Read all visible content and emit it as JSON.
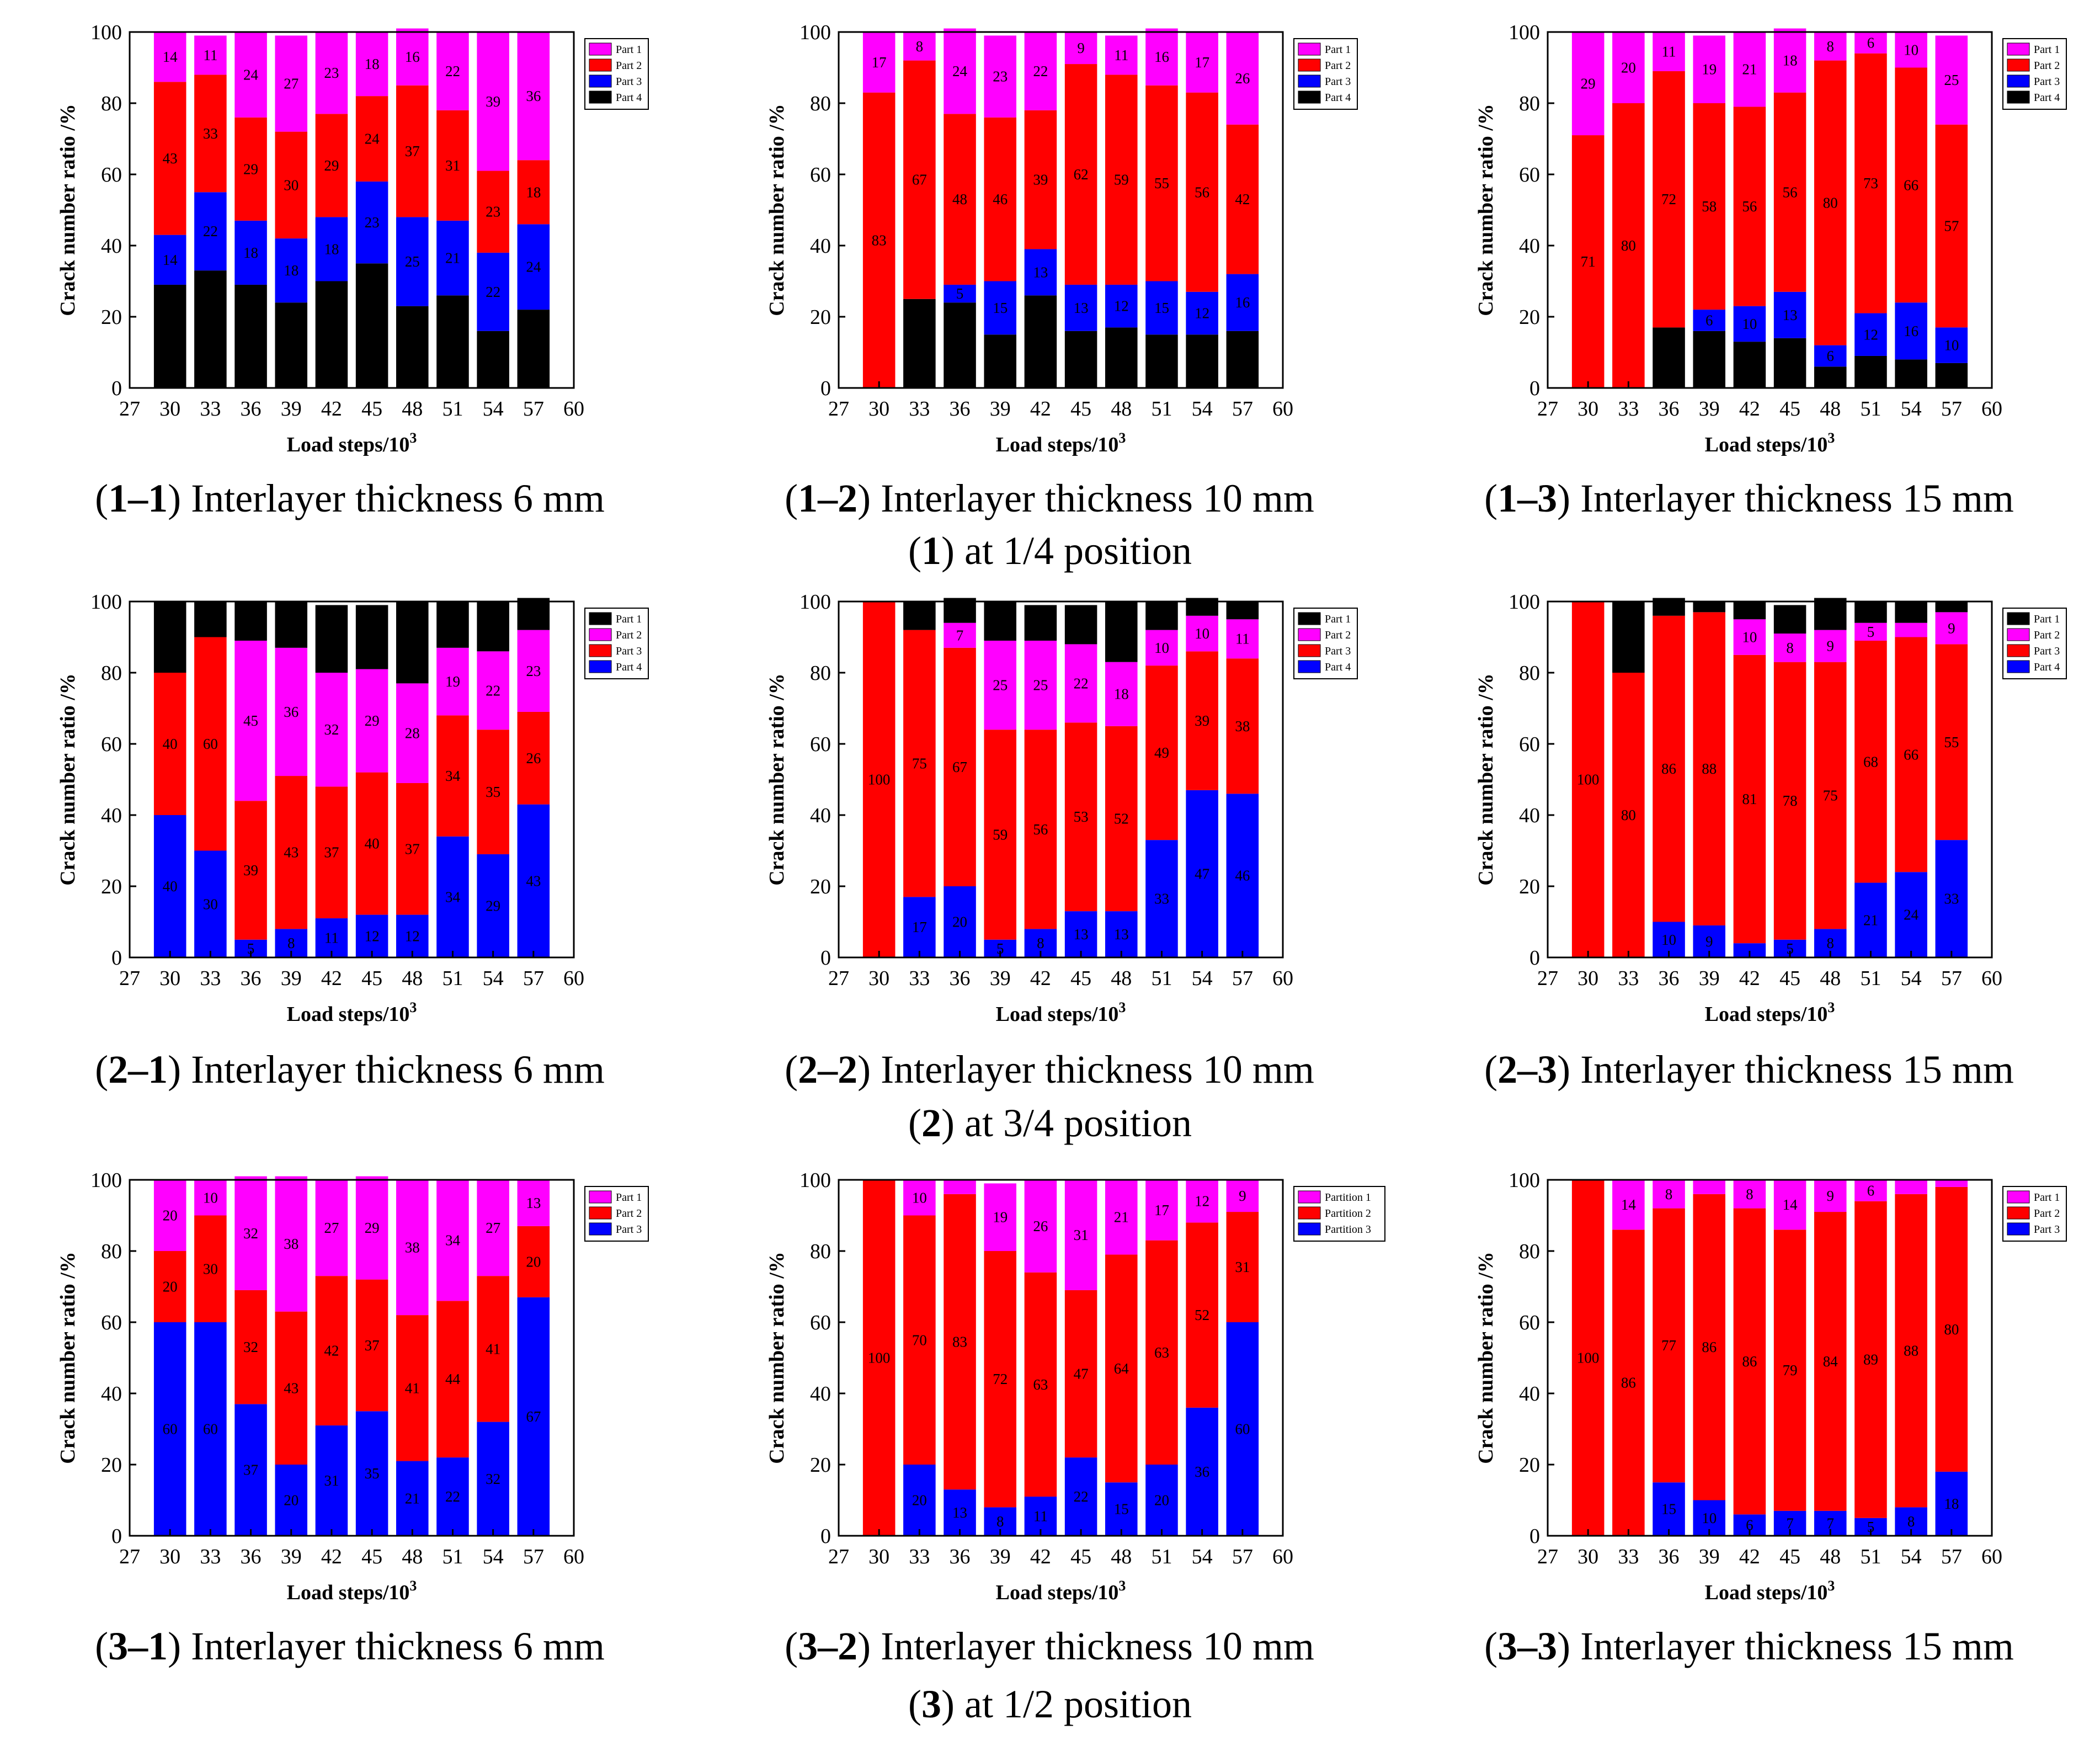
{
  "figure": {
    "colors": {
      "Part 1": "#ff00ff",
      "Part 2": "#ff0000",
      "Part 3": "#0000ff",
      "Part 4": "#000000"
    },
    "shared_axes": {
      "xlabel_base": "Load steps/10",
      "xlabel_sup": "3",
      "ylabel": "Crack number ratio /%",
      "xticks": [
        27,
        30,
        33,
        36,
        39,
        42,
        45,
        48,
        51,
        54,
        57,
        60
      ],
      "yticks": [
        0,
        20,
        40,
        60,
        80,
        100
      ]
    },
    "groups": [
      {
        "id": "1",
        "label_num": "1",
        "label_text": " at 1/4 position"
      },
      {
        "id": "2",
        "label_num": "2",
        "label_text": " at 3/4 position"
      },
      {
        "id": "3",
        "label_num": "3",
        "label_text": " at 1/2 position"
      }
    ]
  },
  "chart_data": [
    {
      "id": "1-1",
      "type": "bar",
      "stacked": true,
      "caption_num": "1–1",
      "caption_text": " Interlayer thickness 6 mm",
      "xlabel": "Load steps/10³",
      "ylabel": "Crack number ratio /%",
      "xlim": [
        27,
        60
      ],
      "ylim": [
        0,
        100
      ],
      "x": [
        30,
        33,
        36,
        39,
        42,
        45,
        48,
        51,
        54,
        57
      ],
      "legend": [
        "Part 1",
        "Part 2",
        "Part 3",
        "Part 4"
      ],
      "series": [
        {
          "name": "Part 4",
          "color": "#000000",
          "label_color": "#ffffff",
          "values": [
            29,
            33,
            29,
            24,
            30,
            35,
            23,
            26,
            16,
            22
          ]
        },
        {
          "name": "Part 3",
          "color": "#0000ff",
          "label_color": "#ffffff",
          "values": [
            14,
            22,
            18,
            18,
            18,
            23,
            25,
            21,
            22,
            24
          ]
        },
        {
          "name": "Part 2",
          "color": "#ff0000",
          "label_color": "#ffffff",
          "values": [
            43,
            33,
            29,
            30,
            29,
            24,
            37,
            31,
            23,
            18
          ]
        },
        {
          "name": "Part 1",
          "color": "#ff00ff",
          "label_color": "#ffffff",
          "values": [
            14,
            11,
            24,
            27,
            23,
            18,
            16,
            22,
            39,
            36
          ]
        }
      ]
    },
    {
      "id": "1-2",
      "type": "bar",
      "stacked": true,
      "caption_num": "1–2",
      "caption_text": " Interlayer thickness 10 mm",
      "xlabel": "Load steps/10³",
      "ylabel": "Crack number ratio /%",
      "xlim": [
        27,
        60
      ],
      "ylim": [
        0,
        100
      ],
      "x": [
        30,
        33,
        36,
        39,
        42,
        45,
        48,
        51,
        54,
        57
      ],
      "legend": [
        "Part 1",
        "Part 2",
        "Part 3",
        "Part 4"
      ],
      "series": [
        {
          "name": "Part 4",
          "color": "#000000",
          "label_color": "#ffffff",
          "values": [
            0,
            25,
            24,
            15,
            26,
            16,
            17,
            15,
            15,
            16
          ]
        },
        {
          "name": "Part 3",
          "color": "#0000ff",
          "label_color": "#ffffff",
          "values": [
            0,
            0,
            5,
            15,
            13,
            13,
            12,
            15,
            12,
            16
          ]
        },
        {
          "name": "Part 2",
          "color": "#ff0000",
          "label_color": "#ffffff",
          "values": [
            83,
            67,
            48,
            46,
            39,
            62,
            59,
            55,
            56,
            42
          ]
        },
        {
          "name": "Part 1",
          "color": "#ff00ff",
          "label_color": "#ffffff",
          "values": [
            17,
            8,
            24,
            23,
            22,
            9,
            11,
            16,
            17,
            26
          ]
        }
      ]
    },
    {
      "id": "1-3",
      "type": "bar",
      "stacked": true,
      "caption_num": "1–3",
      "caption_text": " Interlayer thickness 15 mm",
      "xlabel": "Load steps/10³",
      "ylabel": "Crack number ratio /%",
      "xlim": [
        27,
        60
      ],
      "ylim": [
        0,
        100
      ],
      "x": [
        30,
        33,
        36,
        39,
        42,
        45,
        48,
        51,
        54,
        57
      ],
      "legend": [
        "Part 1",
        "Part 2",
        "Part 3",
        "Part 4"
      ],
      "series": [
        {
          "name": "Part 4",
          "color": "#000000",
          "label_color": "#ffffff",
          "values": [
            0,
            0,
            17,
            16,
            13,
            14,
            6,
            9,
            8,
            7
          ]
        },
        {
          "name": "Part 3",
          "color": "#0000ff",
          "label_color": "#ffffff",
          "values": [
            0,
            0,
            0,
            6,
            10,
            13,
            6,
            12,
            16,
            10
          ]
        },
        {
          "name": "Part 2",
          "color": "#ff0000",
          "label_color": "#ffffff",
          "values": [
            71,
            80,
            72,
            58,
            56,
            56,
            80,
            73,
            66,
            57
          ]
        },
        {
          "name": "Part 1",
          "color": "#ff00ff",
          "label_color": "#ffffff",
          "values": [
            29,
            20,
            11,
            19,
            21,
            18,
            8,
            6,
            10,
            25
          ]
        }
      ]
    },
    {
      "id": "2-1",
      "type": "bar",
      "stacked": true,
      "caption_num": "2–1",
      "caption_text": " Interlayer thickness 6 mm",
      "xlabel": "Load steps/10³",
      "ylabel": "Crack number ratio /%",
      "xlim": [
        27,
        60
      ],
      "ylim": [
        0,
        100
      ],
      "x": [
        30,
        33,
        36,
        39,
        42,
        45,
        48,
        51,
        54,
        57
      ],
      "legend": [
        "Part 1",
        "Part 2",
        "Part 3",
        "Part 4"
      ],
      "series": [
        {
          "name": "Part 4",
          "color": "#0000ff",
          "label_color": "#ffffff",
          "values": [
            40,
            30,
            5,
            8,
            11,
            12,
            12,
            34,
            29,
            43
          ]
        },
        {
          "name": "Part 3",
          "color": "#ff0000",
          "label_color": "#ffffff",
          "values": [
            40,
            60,
            39,
            43,
            37,
            40,
            37,
            34,
            35,
            26
          ]
        },
        {
          "name": "Part 2",
          "color": "#ff00ff",
          "label_color": "#ffffff",
          "values": [
            0,
            0,
            45,
            36,
            32,
            29,
            28,
            19,
            22,
            23
          ]
        },
        {
          "name": "Part 1",
          "color": "#000000",
          "label_color": "#ffffff",
          "values": [
            20,
            10,
            11,
            13,
            19,
            18,
            23,
            13,
            14,
            9
          ]
        }
      ]
    },
    {
      "id": "2-2",
      "type": "bar",
      "stacked": true,
      "caption_num": "2–2",
      "caption_text": " Interlayer thickness 10 mm",
      "xlabel": "Load steps/10³",
      "ylabel": "Crack number ratio /%",
      "xlim": [
        27,
        60
      ],
      "ylim": [
        0,
        100
      ],
      "x": [
        30,
        33,
        36,
        39,
        42,
        45,
        48,
        51,
        54,
        57
      ],
      "legend": [
        "Part 1",
        "Part 2",
        "Part 3",
        "Part 4"
      ],
      "series": [
        {
          "name": "Part 4",
          "color": "#0000ff",
          "label_color": "#ffffff",
          "values": [
            0,
            17,
            20,
            5,
            8,
            13,
            13,
            33,
            47,
            46
          ]
        },
        {
          "name": "Part 3",
          "color": "#ff0000",
          "label_color": "#ffffff",
          "values": [
            100,
            75,
            67,
            59,
            56,
            53,
            52,
            49,
            39,
            38
          ]
        },
        {
          "name": "Part 2",
          "color": "#ff00ff",
          "label_color": "#ffffff",
          "values": [
            0,
            0,
            7,
            25,
            25,
            22,
            18,
            10,
            10,
            11
          ]
        },
        {
          "name": "Part 1",
          "color": "#000000",
          "label_color": "#ffffff",
          "values": [
            0,
            8,
            7,
            11,
            10,
            11,
            17,
            8,
            5,
            5
          ]
        }
      ]
    },
    {
      "id": "2-3",
      "type": "bar",
      "stacked": true,
      "caption_num": "2–3",
      "caption_text": " Interlayer thickness 15 mm",
      "xlabel": "Load steps/10³",
      "ylabel": "Crack number ratio /%",
      "xlim": [
        27,
        60
      ],
      "ylim": [
        0,
        100
      ],
      "x": [
        30,
        33,
        36,
        39,
        42,
        45,
        48,
        51,
        54,
        57
      ],
      "legend": [
        "Part 1",
        "Part 2",
        "Part 3",
        "Part 4"
      ],
      "series": [
        {
          "name": "Part 4",
          "color": "#0000ff",
          "label_color": "#ffffff",
          "values": [
            0,
            0,
            10,
            9,
            4,
            5,
            8,
            21,
            24,
            33
          ]
        },
        {
          "name": "Part 3",
          "color": "#ff0000",
          "label_color": "#ffffff",
          "values": [
            100,
            80,
            86,
            88,
            81,
            78,
            75,
            68,
            66,
            55
          ]
        },
        {
          "name": "Part 2",
          "color": "#ff00ff",
          "label_color": "#ffffff",
          "values": [
            0,
            0,
            0,
            0,
            10,
            8,
            9,
            5,
            4,
            9
          ]
        },
        {
          "name": "Part 1",
          "color": "#000000",
          "label_color": "#ffffff",
          "values": [
            0,
            20,
            5,
            3,
            5,
            8,
            9,
            6,
            6,
            3
          ]
        }
      ]
    },
    {
      "id": "3-1",
      "type": "bar",
      "stacked": true,
      "caption_num": "3–1",
      "caption_text": " Interlayer thickness 6 mm",
      "xlabel": "Load steps/10³",
      "ylabel": "Crack number ratio /%",
      "xlim": [
        27,
        60
      ],
      "ylim": [
        0,
        100
      ],
      "x": [
        30,
        33,
        36,
        39,
        42,
        45,
        48,
        51,
        54,
        57
      ],
      "legend": [
        "Part 1",
        "Part 2",
        "Part 3"
      ],
      "series": [
        {
          "name": "Part 3",
          "color": "#0000ff",
          "label_color": "#ffffff",
          "values": [
            60,
            60,
            37,
            20,
            31,
            35,
            21,
            22,
            32,
            67
          ]
        },
        {
          "name": "Part 2",
          "color": "#ff0000",
          "label_color": "#ffffff",
          "values": [
            20,
            30,
            32,
            43,
            42,
            37,
            41,
            44,
            41,
            20
          ]
        },
        {
          "name": "Part 1",
          "color": "#ff00ff",
          "label_color": "#ffffff",
          "values": [
            20,
            10,
            32,
            38,
            27,
            29,
            38,
            34,
            27,
            13
          ]
        }
      ]
    },
    {
      "id": "3-2",
      "type": "bar",
      "stacked": true,
      "caption_num": "3–2",
      "caption_text": " Interlayer thickness 10 mm",
      "xlabel": "Load steps/10³",
      "ylabel": "Crack number ratio /%",
      "xlim": [
        27,
        60
      ],
      "ylim": [
        0,
        100
      ],
      "x": [
        30,
        33,
        36,
        39,
        42,
        45,
        48,
        51,
        54,
        57
      ],
      "legend": [
        "Partition 1",
        "Partition 2",
        "Partition 3"
      ],
      "series": [
        {
          "name": "Partition 3",
          "color": "#0000ff",
          "label_color": "#ffffff",
          "values": [
            0,
            20,
            13,
            8,
            11,
            22,
            15,
            20,
            36,
            60
          ]
        },
        {
          "name": "Partition 2",
          "color": "#ff0000",
          "label_color": "#ffffff",
          "values": [
            100,
            70,
            83,
            72,
            63,
            47,
            64,
            63,
            52,
            31
          ]
        },
        {
          "name": "Partition 1",
          "color": "#ff00ff",
          "label_color": "#ffffff",
          "values": [
            0,
            10,
            4,
            19,
            26,
            31,
            21,
            17,
            12,
            9
          ]
        }
      ]
    },
    {
      "id": "3-3",
      "type": "bar",
      "stacked": true,
      "caption_num": "3–3",
      "caption_text": " Interlayer thickness 15 mm",
      "xlabel": "Load steps/10³",
      "ylabel": "Crack number ratio /%",
      "xlim": [
        27,
        60
      ],
      "ylim": [
        0,
        100
      ],
      "x": [
        30,
        33,
        36,
        39,
        42,
        45,
        48,
        51,
        54,
        57
      ],
      "legend": [
        "Part 1",
        "Part 2",
        "Part 3"
      ],
      "series": [
        {
          "name": "Part 3",
          "color": "#0000ff",
          "label_color": "#ffffff",
          "values": [
            0,
            0,
            15,
            10,
            6,
            7,
            7,
            5,
            8,
            18
          ]
        },
        {
          "name": "Part 2",
          "color": "#ff0000",
          "label_color": "#ffffff",
          "values": [
            100,
            86,
            77,
            86,
            86,
            79,
            84,
            89,
            88,
            80
          ]
        },
        {
          "name": "Part 1",
          "color": "#ff00ff",
          "label_color": "#ffffff",
          "values": [
            0,
            14,
            8,
            4,
            8,
            14,
            9,
            6,
            4,
            2
          ]
        }
      ]
    }
  ]
}
